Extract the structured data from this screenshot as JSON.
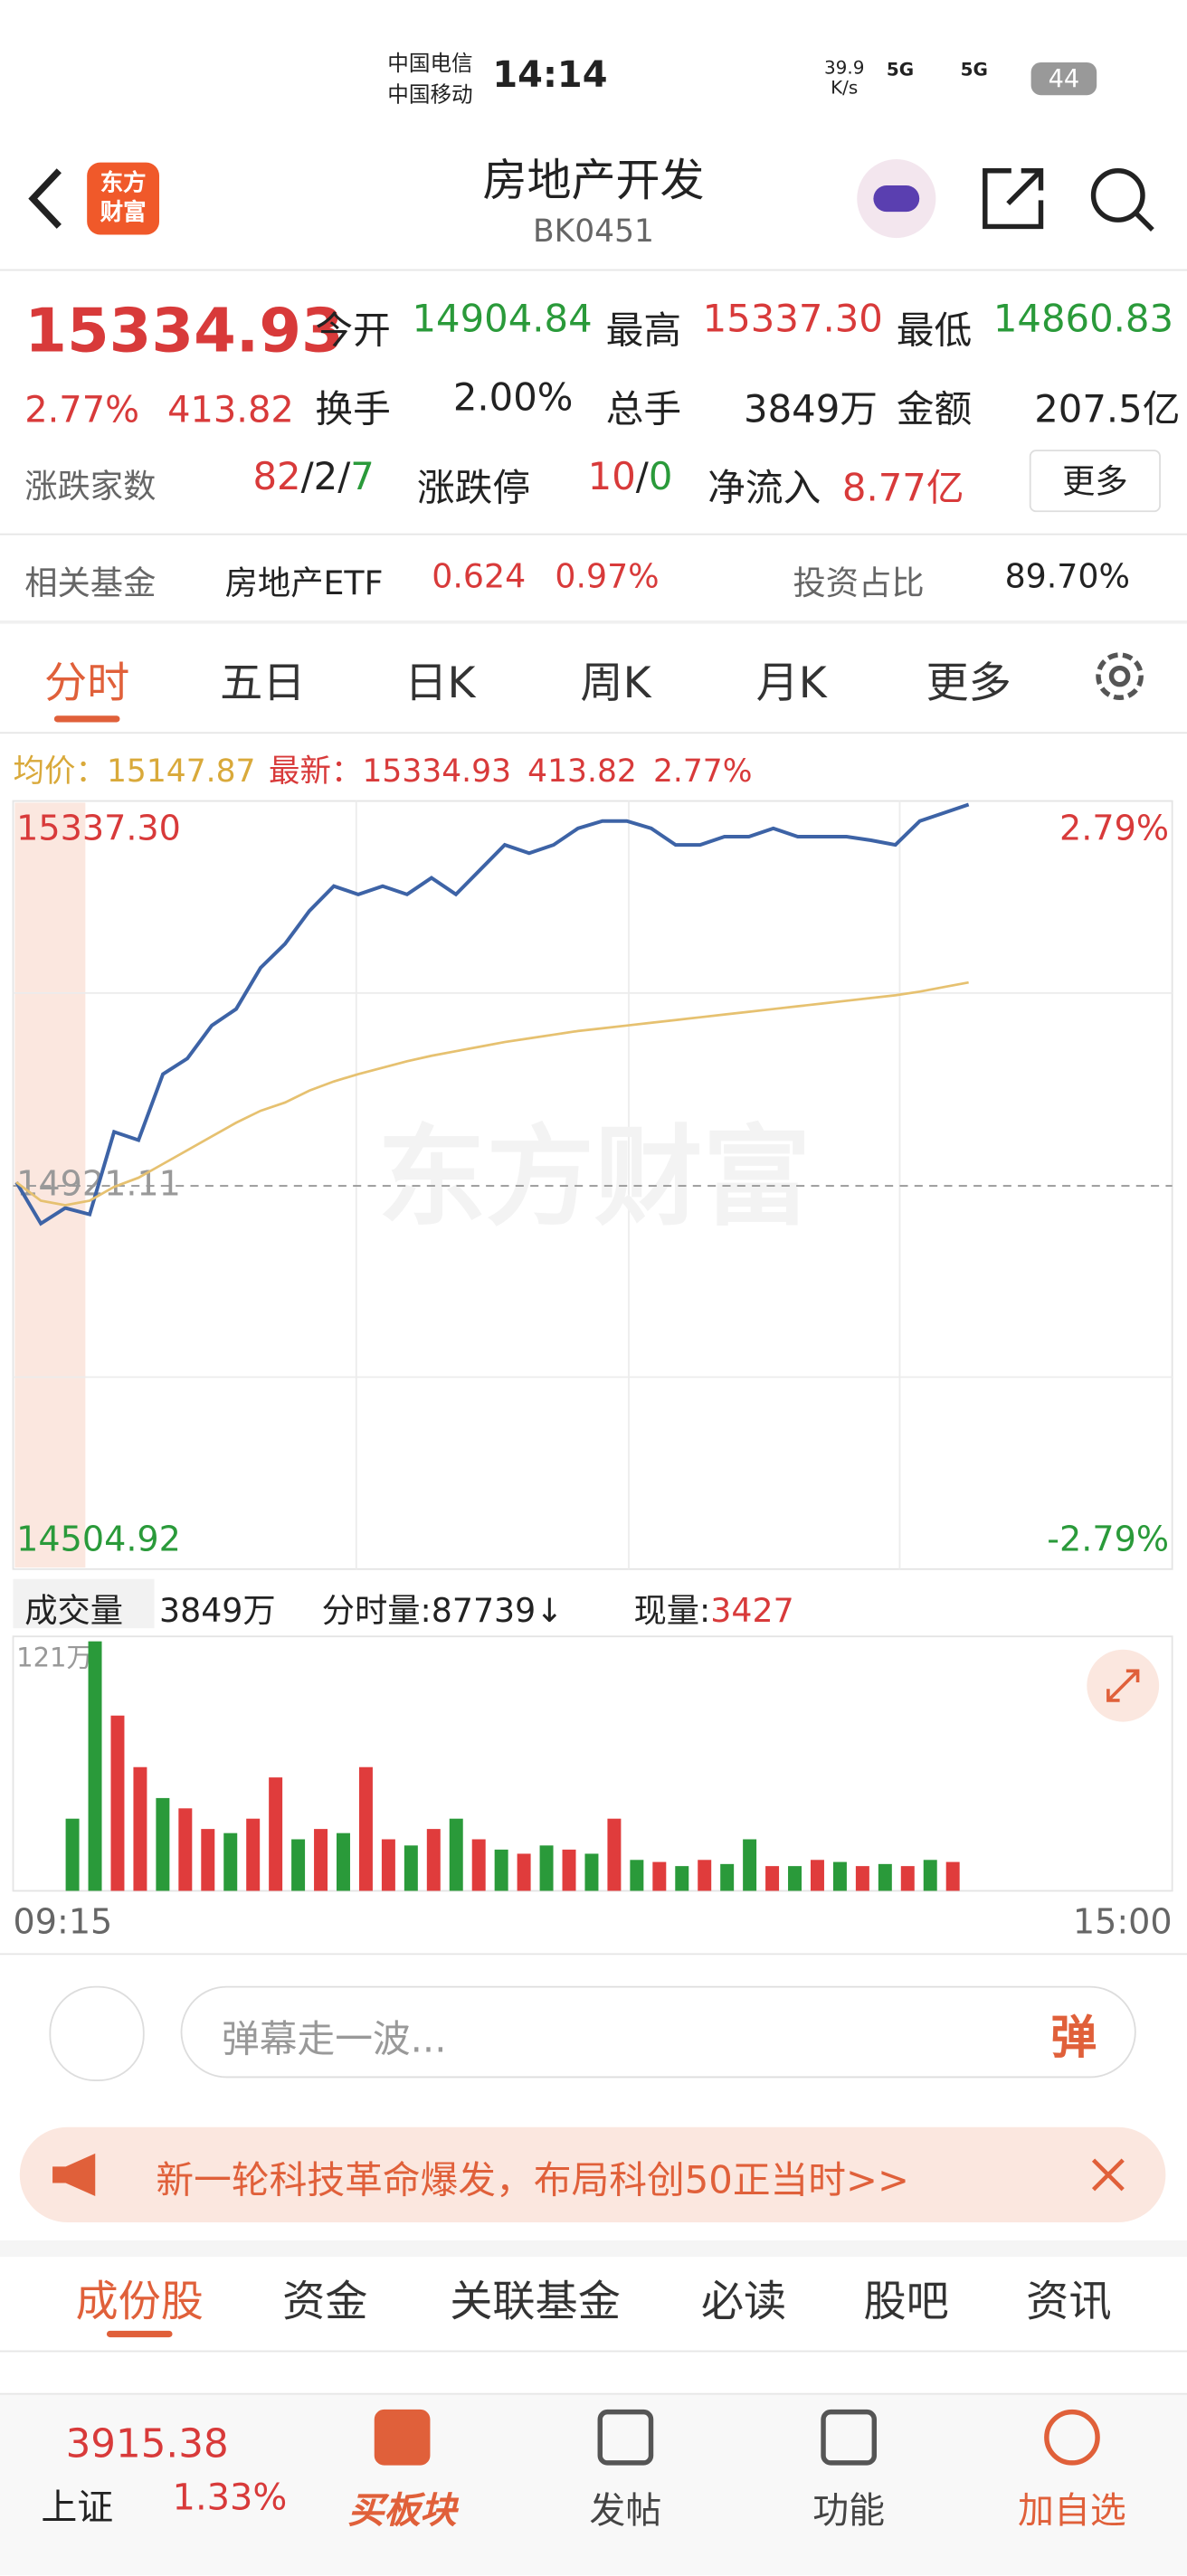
{
  "status": {
    "carrier1": "中国电信",
    "carrier2": "中国移动",
    "time": "14:14",
    "speed": "39.9",
    "speed_unit": "K/s",
    "net1": "5G",
    "net2": "5G",
    "battery": "44"
  },
  "header": {
    "logo_top": "东方",
    "logo_bottom": "财富",
    "title": "房地产开发",
    "code": "BK0451"
  },
  "quote": {
    "price": "15334.93",
    "change_pct": "2.77%",
    "change": "413.82",
    "fields": [
      {
        "label": "今开",
        "value": "14904.84"
      },
      {
        "label": "最高",
        "value": "15337.30"
      },
      {
        "label": "最低",
        "value": "14860.83"
      },
      {
        "label": "换手",
        "value": "2.00%"
      },
      {
        "label": "总手",
        "value": "3849万"
      },
      {
        "label": "金额",
        "value": "207.5亿"
      }
    ],
    "breadth_label": "涨跌家数",
    "up": "82",
    "sep": "/",
    "flat": "2",
    "down": "7",
    "limit_label": "涨跌停",
    "limit_up": "10",
    "limit_down": "0",
    "inflow_label": "净流入",
    "inflow": "8.77亿",
    "more": "更多"
  },
  "fund": {
    "label": "相关基金",
    "name": "房地产ETF",
    "price": "0.624",
    "pct": "0.97%",
    "ratio_label": "投资占比",
    "ratio": "89.70%"
  },
  "chart_tabs": [
    "分时",
    "五日",
    "日K",
    "周K",
    "月K",
    "更多"
  ],
  "info": {
    "avg_label": "均价：",
    "avg": "15147.87",
    "latest_label": "最新：",
    "latest": "15334.93",
    "change": "413.82",
    "pct": "2.77%"
  },
  "watermark": "东方财富",
  "chart_data": [
    {
      "type": "line",
      "ylim": [
        14504.92,
        15337.3
      ],
      "yticks": [
        {
          "value": 15337.3,
          "label": "15337.30"
        },
        {
          "value": 14921.11,
          "label": "14921.11"
        },
        {
          "value": 14504.92,
          "label": "14504.92"
        }
      ],
      "y2lim": [
        -2.79,
        2.79
      ],
      "y2ticks": [
        {
          "value": 2.79,
          "label": "2.79%"
        },
        {
          "value": -2.79,
          "label": "-2.79%"
        }
      ],
      "series": [
        {
          "color": "#3d63a6",
          "values": [
            14925,
            14880,
            14897,
            14890,
            14980,
            14971,
            15043,
            15060,
            15096,
            15114,
            15159,
            15185,
            15221,
            15248,
            15239,
            15248,
            15239,
            15257,
            15239,
            15266,
            15293,
            15284,
            15293,
            15311,
            15319,
            15319,
            15311,
            15293,
            15293,
            15302,
            15302,
            15311,
            15302,
            15302,
            15302,
            15298,
            15293,
            15319,
            15328,
            15337
          ]
        },
        {
          "color": "#e6c170",
          "values": [
            14925,
            14905,
            14900,
            14905,
            14920,
            14930,
            14945,
            14960,
            14975,
            14990,
            15003,
            15012,
            15025,
            15035,
            15043,
            15050,
            15057,
            15063,
            15068,
            15073,
            15078,
            15082,
            15086,
            15090,
            15093,
            15096,
            15099,
            15102,
            15105,
            15108,
            15111,
            15114,
            15117,
            15120,
            15123,
            15126,
            15129,
            15133,
            15138,
            15143
          ]
        }
      ]
    },
    {
      "type": "bar",
      "ylim": [
        0,
        121
      ],
      "yticks": [
        {
          "value": 121,
          "label": "121万"
        }
      ],
      "xtick_labels": [
        "09:15",
        "15:00"
      ],
      "values": [
        35,
        121,
        85,
        60,
        45,
        40,
        30,
        28,
        35,
        55,
        25,
        30,
        28,
        60,
        25,
        22,
        30,
        35,
        25,
        20,
        18,
        22,
        20,
        18,
        35,
        15,
        14,
        12,
        15,
        13,
        25,
        12,
        12,
        15,
        14,
        12,
        13,
        12,
        15,
        14
      ],
      "colors": [
        "#2a9a3a",
        "#2a9a3a",
        "#e03c3c",
        "#e03c3c",
        "#2a9a3a",
        "#e03c3c",
        "#e03c3c",
        "#2a9a3a",
        "#e03c3c",
        "#e03c3c",
        "#2a9a3a",
        "#e03c3c",
        "#2a9a3a",
        "#e03c3c",
        "#e03c3c",
        "#2a9a3a",
        "#e03c3c",
        "#2a9a3a",
        "#e03c3c",
        "#2a9a3a",
        "#e03c3c",
        "#2a9a3a",
        "#e03c3c",
        "#2a9a3a",
        "#e03c3c",
        "#2a9a3a",
        "#e03c3c",
        "#2a9a3a",
        "#e03c3c",
        "#2a9a3a",
        "#2a9a3a",
        "#e03c3c",
        "#2a9a3a",
        "#e03c3c",
        "#2a9a3a",
        "#e03c3c",
        "#2a9a3a",
        "#e03c3c",
        "#2a9a3a",
        "#e03c3c"
      ]
    }
  ],
  "volume_bar": {
    "label": "成交量",
    "total": "3849万",
    "minute_label": "分时量:87739↓",
    "now_label": "现量:",
    "now": "3427"
  },
  "chat": {
    "placeholder": "弹幕走一波...",
    "button": "弹"
  },
  "banner": {
    "text": "新一轮科技革命爆发，布局科创50正当时>>"
  },
  "section_tabs": [
    "成份股",
    "资金",
    "关联基金",
    "必读",
    "股吧",
    "资讯"
  ],
  "bottom": {
    "index_price": "3915.38",
    "index_name": "上证",
    "index_pct": "1.33%",
    "nav": [
      "买板块",
      "发帖",
      "功能",
      "加自选"
    ]
  }
}
